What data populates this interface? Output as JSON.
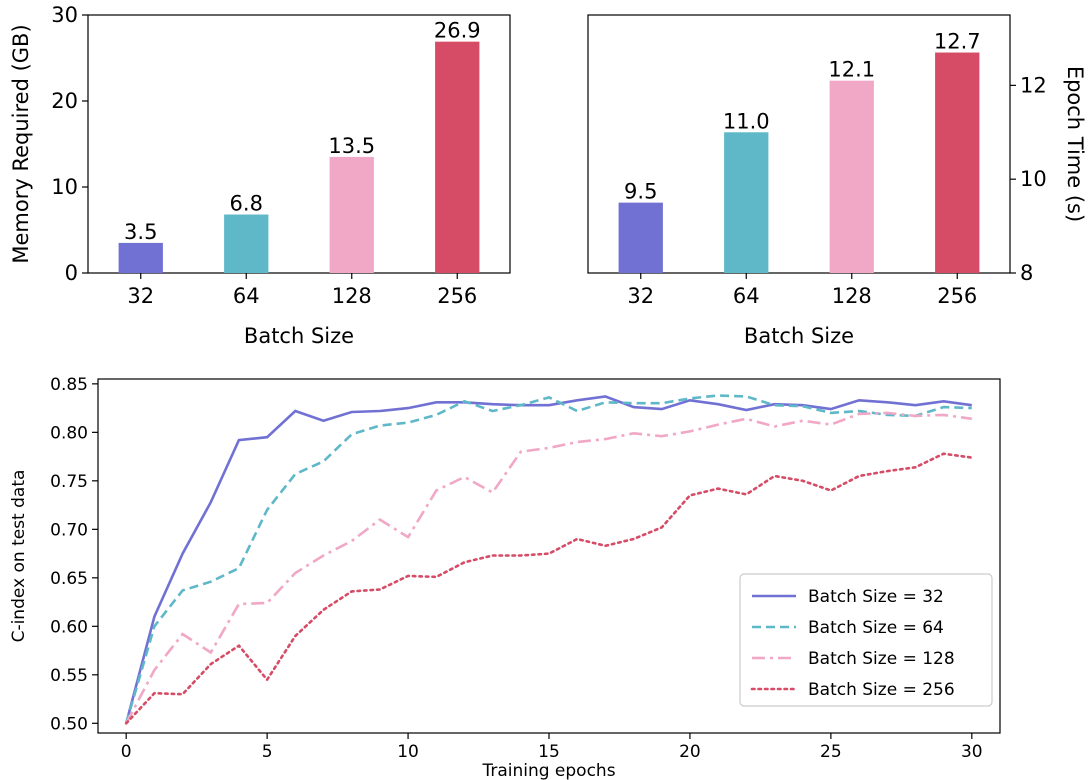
{
  "chart_data": [
    {
      "type": "bar",
      "categories": [
        "32",
        "64",
        "128",
        "256"
      ],
      "values": [
        3.5,
        6.8,
        13.5,
        26.9
      ],
      "value_labels": [
        "3.5",
        "6.8",
        "13.5",
        "26.9"
      ],
      "colors": [
        "#7171d4",
        "#5fb8c8",
        "#f0a8c6",
        "#d64b66"
      ],
      "title": "",
      "xlabel": "Batch Size",
      "ylabel": "Memory Required (GB)",
      "ylim": [
        0,
        30
      ],
      "yticks": [
        "0",
        "10",
        "20",
        "30"
      ],
      "yaxis_side": "left",
      "grid": false
    },
    {
      "type": "bar",
      "categories": [
        "32",
        "64",
        "128",
        "256"
      ],
      "values": [
        9.5,
        11.0,
        12.1,
        12.7
      ],
      "value_labels": [
        "9.5",
        "11.0",
        "12.1",
        "12.7"
      ],
      "colors": [
        "#7171d4",
        "#5fb8c8",
        "#f0a8c6",
        "#d64b66"
      ],
      "title": "",
      "xlabel": "Batch Size",
      "ylabel": "Epoch Time (s)",
      "ylim": [
        8,
        13.5
      ],
      "yticks": [
        "8",
        "10",
        "12"
      ],
      "yaxis_side": "right",
      "grid": false
    },
    {
      "type": "line",
      "title": "",
      "xlabel": "Training epochs",
      "ylabel": "C-index on test data",
      "xlim": [
        -1,
        31
      ],
      "ylim": [
        0.49,
        0.855
      ],
      "xticks": [
        "0",
        "5",
        "10",
        "15",
        "20",
        "25",
        "30"
      ],
      "yticks": [
        "0.50",
        "0.55",
        "0.60",
        "0.65",
        "0.70",
        "0.75",
        "0.80",
        "0.85"
      ],
      "legend_position": "bottom-right",
      "grid": false,
      "x": [
        0,
        1,
        2,
        3,
        4,
        5,
        6,
        7,
        8,
        9,
        10,
        11,
        12,
        13,
        14,
        15,
        16,
        17,
        18,
        19,
        20,
        21,
        22,
        23,
        24,
        25,
        26,
        27,
        28,
        29,
        30
      ],
      "series": [
        {
          "name": "Batch Size = 32",
          "color": "#7171d4",
          "style": "solid",
          "values": [
            0.5,
            0.61,
            0.675,
            0.728,
            0.792,
            0.795,
            0.822,
            0.812,
            0.821,
            0.822,
            0.825,
            0.831,
            0.831,
            0.829,
            0.828,
            0.828,
            0.833,
            0.837,
            0.826,
            0.824,
            0.833,
            0.829,
            0.823,
            0.829,
            0.828,
            0.824,
            0.833,
            0.831,
            0.828,
            0.832,
            0.828
          ]
        },
        {
          "name": "Batch Size = 64",
          "color": "#5fb8c8",
          "style": "dashed",
          "values": [
            0.5,
            0.6,
            0.637,
            0.646,
            0.66,
            0.72,
            0.757,
            0.77,
            0.798,
            0.807,
            0.81,
            0.818,
            0.832,
            0.822,
            0.828,
            0.836,
            0.822,
            0.831,
            0.83,
            0.83,
            0.835,
            0.838,
            0.837,
            0.828,
            0.827,
            0.82,
            0.822,
            0.818,
            0.817,
            0.826,
            0.825
          ]
        },
        {
          "name": "Batch Size = 128",
          "color": "#f0a8c6",
          "style": "dashdot",
          "values": [
            0.5,
            0.555,
            0.592,
            0.573,
            0.623,
            0.624,
            0.655,
            0.673,
            0.688,
            0.71,
            0.692,
            0.74,
            0.754,
            0.738,
            0.78,
            0.784,
            0.79,
            0.793,
            0.799,
            0.796,
            0.801,
            0.808,
            0.814,
            0.806,
            0.812,
            0.808,
            0.819,
            0.82,
            0.817,
            0.818,
            0.814
          ]
        },
        {
          "name": "Batch Size = 256",
          "color": "#d64b66",
          "style": "dotted",
          "values": [
            0.5,
            0.531,
            0.53,
            0.561,
            0.58,
            0.545,
            0.59,
            0.617,
            0.636,
            0.638,
            0.652,
            0.651,
            0.666,
            0.673,
            0.673,
            0.675,
            0.69,
            0.683,
            0.69,
            0.702,
            0.735,
            0.742,
            0.736,
            0.755,
            0.75,
            0.74,
            0.755,
            0.76,
            0.764,
            0.778,
            0.774
          ]
        }
      ]
    }
  ]
}
